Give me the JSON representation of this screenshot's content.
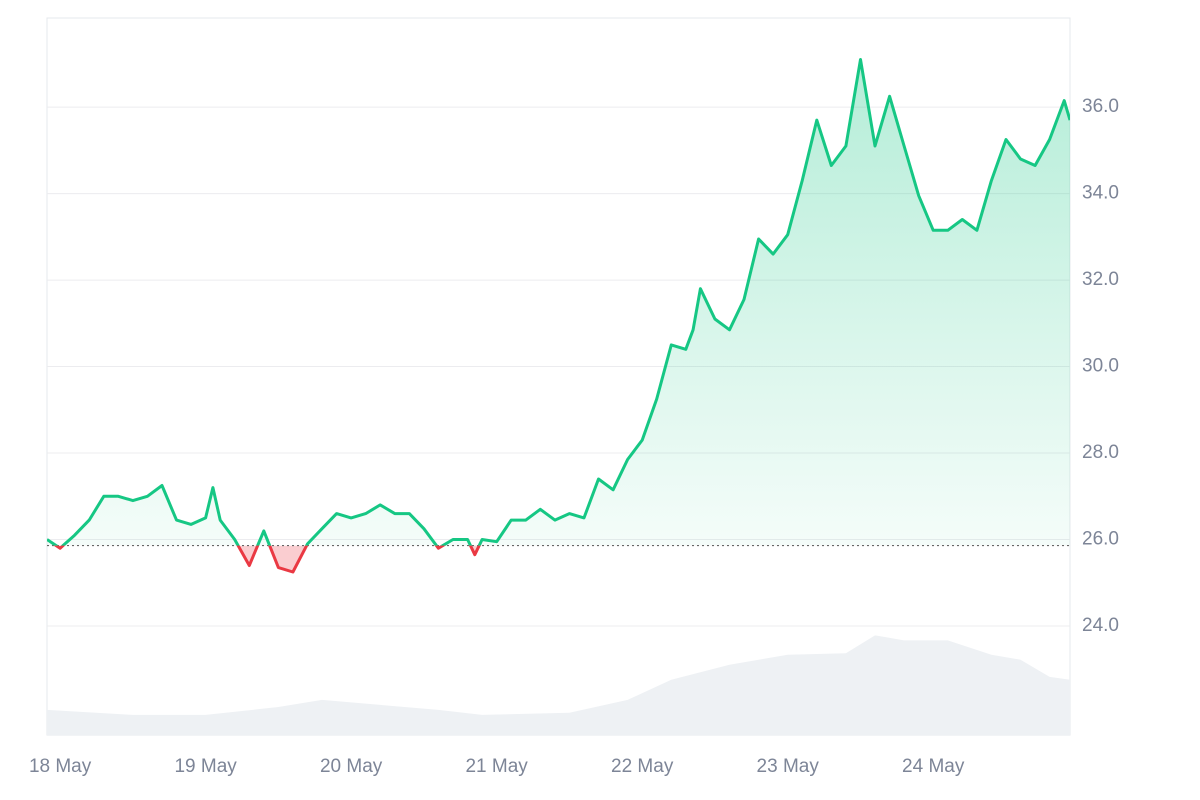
{
  "chart_data": {
    "type": "line",
    "baseline": 25.86,
    "up_color": "#16c784",
    "down_color": "#ea3943",
    "grid": true,
    "xlim": [
      -0.09,
      6.94
    ],
    "xticks": [
      {
        "value": 0,
        "label": "18 May"
      },
      {
        "value": 1,
        "label": "19 May"
      },
      {
        "value": 2,
        "label": "20 May"
      },
      {
        "value": 3,
        "label": "21 May"
      },
      {
        "value": 4,
        "label": "22 May"
      },
      {
        "value": 5,
        "label": "23 May"
      },
      {
        "value": 6,
        "label": "24 May"
      }
    ],
    "ylim": [
      21.48,
      38.06
    ],
    "yticks": [
      {
        "value": 24,
        "label": "24.0"
      },
      {
        "value": 26,
        "label": "26.0"
      },
      {
        "value": 28,
        "label": "28.0"
      },
      {
        "value": 30,
        "label": "30.0"
      },
      {
        "value": 32,
        "label": "32.0"
      },
      {
        "value": 34,
        "label": "34.0"
      },
      {
        "value": 36,
        "label": "36.0"
      }
    ],
    "y2lim": [
      0,
      100
    ],
    "series": [
      {
        "name": "Price",
        "x": [
          -0.09,
          0,
          0.1,
          0.2,
          0.3,
          0.4,
          0.5,
          0.6,
          0.7,
          0.8,
          0.9,
          1,
          1.05,
          1.1,
          1.2,
          1.3,
          1.4,
          1.5,
          1.6,
          1.7,
          1.8,
          1.9,
          2,
          2.1,
          2.2,
          2.3,
          2.4,
          2.5,
          2.6,
          2.7,
          2.8,
          2.85,
          2.9,
          3,
          3.1,
          3.2,
          3.3,
          3.4,
          3.5,
          3.6,
          3.7,
          3.8,
          3.9,
          4,
          4.1,
          4.2,
          4.3,
          4.35,
          4.4,
          4.5,
          4.6,
          4.7,
          4.8,
          4.9,
          5,
          5.1,
          5.2,
          5.3,
          5.4,
          5.5,
          5.6,
          5.7,
          5.8,
          5.9,
          6,
          6.1,
          6.2,
          6.3,
          6.4,
          6.5,
          6.6,
          6.7,
          6.8,
          6.9,
          6.94
        ],
        "values": [
          26.0,
          25.8,
          26.1,
          26.45,
          27.0,
          27.0,
          26.9,
          27.0,
          27.25,
          26.45,
          26.35,
          26.5,
          27.2,
          26.45,
          26.0,
          25.4,
          26.2,
          25.35,
          25.25,
          25.9,
          26.25,
          26.6,
          26.5,
          26.6,
          26.8,
          26.6,
          26.6,
          26.25,
          25.8,
          26.0,
          26.0,
          25.65,
          26.0,
          25.95,
          26.45,
          26.45,
          26.7,
          26.45,
          26.6,
          26.5,
          27.4,
          27.15,
          27.85,
          28.3,
          29.25,
          30.5,
          30.4,
          30.85,
          31.8,
          31.1,
          30.85,
          31.55,
          32.95,
          32.6,
          33.05,
          34.3,
          35.7,
          34.65,
          35.1,
          37.1,
          35.1,
          36.25,
          35.1,
          33.95,
          33.15,
          33.15,
          33.4,
          33.15,
          34.3,
          35.25,
          34.8,
          34.65,
          35.25,
          36.15,
          35.7
        ]
      },
      {
        "name": "Volume",
        "axis": "y2",
        "color": "#eef1f4",
        "x": [
          -0.09,
          0.5,
          1,
          1.5,
          1.8,
          2.2,
          2.6,
          2.9,
          3.5,
          3.9,
          4.2,
          4.6,
          5,
          5.4,
          5.6,
          5.8,
          6.1,
          6.4,
          6.6,
          6.8,
          6.94
        ],
        "values": [
          3.5,
          2.8,
          2.8,
          3.9,
          4.9,
          4.2,
          3.5,
          2.8,
          3.1,
          4.9,
          7.7,
          9.8,
          11.2,
          11.4,
          13.9,
          13.2,
          13.2,
          11.2,
          10.5,
          8.1,
          7.7
        ]
      }
    ]
  }
}
